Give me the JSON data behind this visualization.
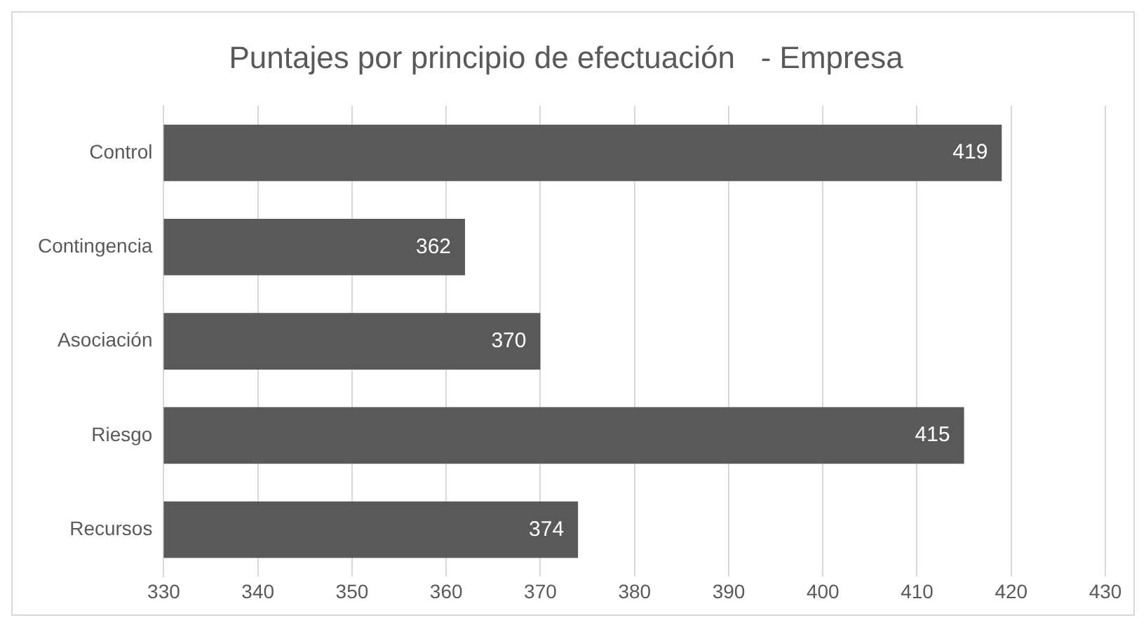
{
  "chart_data": {
    "type": "bar",
    "orientation": "horizontal",
    "title": "Puntajes por principio de efectuación   - Empresa",
    "categories": [
      "Control",
      "Contingencia",
      "Asociación",
      "Riesgo",
      "Recursos"
    ],
    "values": [
      419,
      362,
      370,
      415,
      374
    ],
    "color": "#595959",
    "xlim": [
      330,
      430
    ],
    "xticks": [
      330,
      340,
      350,
      360,
      370,
      380,
      390,
      400,
      410,
      420,
      430
    ],
    "grid": "x",
    "data_labels": true,
    "legend": false
  }
}
